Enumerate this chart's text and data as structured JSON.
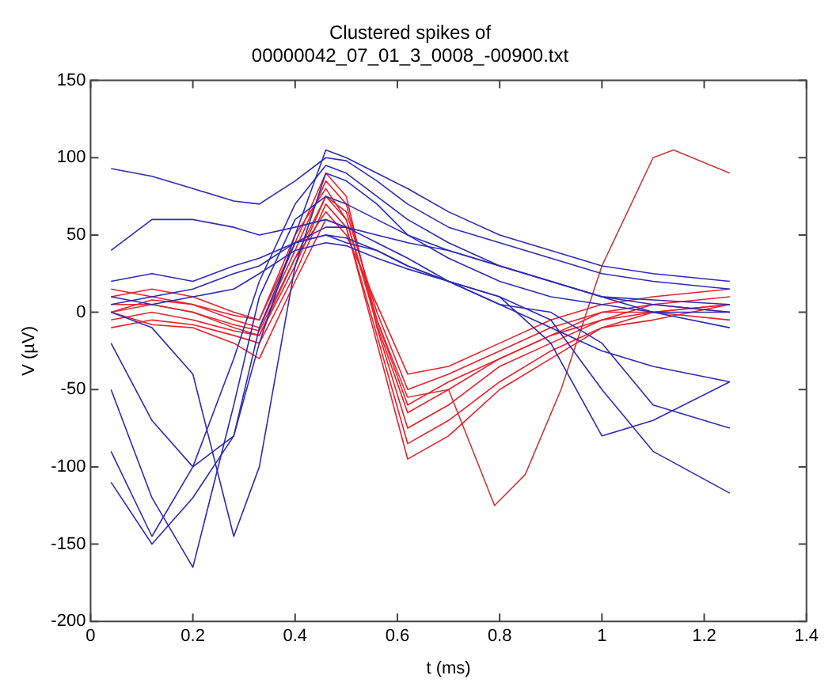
{
  "chart_data": {
    "type": "line",
    "title": "Clustered spikes of\n00000042_07_01_3_0008_-00900.txt",
    "xlabel": "t (ms)",
    "ylabel": "V (µV)",
    "xlim": [
      0,
      1.4
    ],
    "xticks": [
      0,
      0.2,
      0.4,
      0.6,
      0.8,
      1,
      1.2,
      1.4
    ],
    "ylim": [
      -200,
      150
    ],
    "yticks": [
      -200,
      -150,
      -100,
      -50,
      0,
      50,
      100,
      150
    ],
    "grid": false,
    "legend": false,
    "marker": "none",
    "line_style": "solid",
    "x": [
      0.04,
      0.12,
      0.2,
      0.28,
      0.33,
      0.4,
      0.46,
      0.5,
      0.56,
      0.62,
      0.7,
      0.8,
      0.9,
      1.0,
      1.1,
      1.25
    ],
    "series": [
      {
        "color": "#2b2bb8",
        "values": [
          93,
          88,
          80,
          72,
          70,
          85,
          100,
          98,
          85,
          70,
          55,
          45,
          35,
          25,
          20,
          15
        ]
      },
      {
        "color": "#2b2bb8",
        "values": [
          -50,
          -120,
          -165,
          -60,
          10,
          60,
          75,
          70,
          60,
          50,
          40,
          30,
          20,
          10,
          5,
          0
        ]
      },
      {
        "color": "#2b2bb8",
        "values": [
          -90,
          -145,
          -100,
          -30,
          20,
          70,
          95,
          90,
          75,
          60,
          45,
          30,
          20,
          10,
          0,
          -10
        ]
      },
      {
        "color": "#2b2bb8",
        "values": [
          40,
          60,
          60,
          55,
          50,
          55,
          60,
          55,
          45,
          35,
          20,
          5,
          -10,
          -25,
          -35,
          -45
        ]
      },
      {
        "color": "#2b2bb8",
        "values": [
          20,
          25,
          20,
          30,
          35,
          45,
          50,
          48,
          40,
          30,
          20,
          10,
          -5,
          -50,
          -90,
          -117
        ]
      },
      {
        "color": "#2b2bb8",
        "values": [
          10,
          5,
          10,
          15,
          25,
          40,
          45,
          43,
          35,
          28,
          20,
          10,
          -20,
          -80,
          -70,
          -45
        ]
      },
      {
        "color": "#2b2bb8",
        "values": [
          -110,
          -150,
          -120,
          -80,
          -10,
          45,
          50,
          45,
          40,
          30,
          20,
          5,
          0,
          -20,
          -60,
          -75
        ]
      },
      {
        "color": "#2b2bb8",
        "values": [
          0,
          -10,
          -40,
          -145,
          -100,
          30,
          90,
          85,
          70,
          50,
          35,
          20,
          10,
          5,
          0,
          0
        ]
      },
      {
        "color": "#2b2bb8",
        "values": [
          -20,
          -70,
          -100,
          -80,
          -20,
          50,
          105,
          100,
          90,
          80,
          65,
          50,
          40,
          30,
          25,
          20
        ]
      },
      {
        "color": "#2b2bb8",
        "values": [
          5,
          10,
          15,
          25,
          30,
          45,
          55,
          55,
          50,
          45,
          40,
          30,
          20,
          10,
          8,
          5
        ]
      },
      {
        "color": "#e8202a",
        "values": [
          0,
          8,
          5,
          -5,
          -10,
          40,
          85,
          70,
          -5,
          -60,
          -45,
          -30,
          -15,
          -5,
          0,
          5
        ]
      },
      {
        "color": "#e8202a",
        "values": [
          -5,
          0,
          -5,
          -12,
          -15,
          30,
          75,
          65,
          0,
          -50,
          -40,
          -25,
          -10,
          0,
          5,
          10
        ]
      },
      {
        "color": "#e8202a",
        "values": [
          10,
          15,
          10,
          0,
          -5,
          45,
          90,
          75,
          -10,
          -75,
          -60,
          -35,
          -20,
          -5,
          5,
          0
        ]
      },
      {
        "color": "#e8202a",
        "values": [
          -10,
          -5,
          -8,
          -15,
          -20,
          25,
          70,
          55,
          -15,
          -85,
          -70,
          -45,
          -25,
          -10,
          -5,
          5
        ]
      },
      {
        "color": "#e8202a",
        "values": [
          5,
          5,
          0,
          -8,
          -12,
          35,
          65,
          50,
          5,
          -40,
          -35,
          -20,
          -5,
          5,
          10,
          15
        ]
      },
      {
        "color": "#e8202a",
        "values": [
          15,
          10,
          5,
          -2,
          -5,
          50,
          80,
          60,
          -8,
          -65,
          -50,
          -30,
          -15,
          0,
          0,
          -5
        ]
      },
      {
        "color": "#e8202a",
        "values": [
          0,
          -8,
          -10,
          -20,
          -30,
          20,
          60,
          55,
          -20,
          -95,
          -80,
          -50,
          -30,
          -10,
          0,
          5
        ]
      },
      {
        "color": "#c83a3a",
        "x": [
          0.04,
          0.12,
          0.2,
          0.28,
          0.33,
          0.4,
          0.46,
          0.5,
          0.56,
          0.62,
          0.7,
          0.79,
          0.85,
          0.92,
          1.0,
          1.1,
          1.14,
          1.25
        ],
        "values": [
          0,
          5,
          0,
          -10,
          -15,
          35,
          75,
          60,
          -5,
          -55,
          -50,
          -125,
          -105,
          -50,
          30,
          100,
          105,
          90
        ]
      }
    ]
  }
}
